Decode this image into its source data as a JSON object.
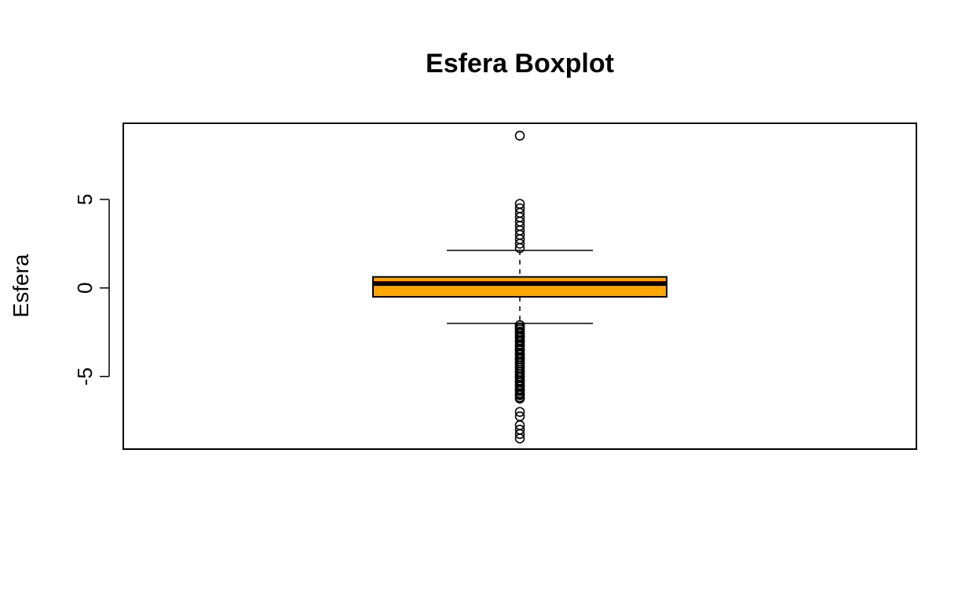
{
  "chart_data": {
    "type": "boxplot",
    "title": "Esfera Boxplot",
    "xlabel": "",
    "ylabel": "Esfera",
    "ylim": [
      -9.1,
      9.3
    ],
    "yticks": [
      -5,
      0,
      5
    ],
    "ytick_labels": [
      "-5",
      "0",
      "5"
    ],
    "grid": false,
    "box": {
      "whisker_low": -2.0,
      "q1": -0.5,
      "median": 0.25,
      "q3": 0.625,
      "whisker_high": 2.125,
      "outliers_high": [
        8.6,
        4.75,
        4.5,
        4.25,
        4.0,
        3.75,
        3.5,
        3.25,
        3.0,
        2.75,
        2.5,
        2.25
      ],
      "outliers_low": [
        -2.1,
        -2.25,
        -2.5,
        -2.75,
        -3.0,
        -3.25,
        -3.5,
        -3.75,
        -4.0,
        -4.25,
        -4.5,
        -4.75,
        -5.0,
        -5.25,
        -5.5,
        -5.75,
        -6.0,
        -6.25,
        -7.0,
        -7.25,
        -7.75,
        -8.0,
        -8.25,
        -8.5
      ]
    },
    "colors": {
      "box_fill": "#FFA500",
      "stroke": "#000000"
    }
  }
}
